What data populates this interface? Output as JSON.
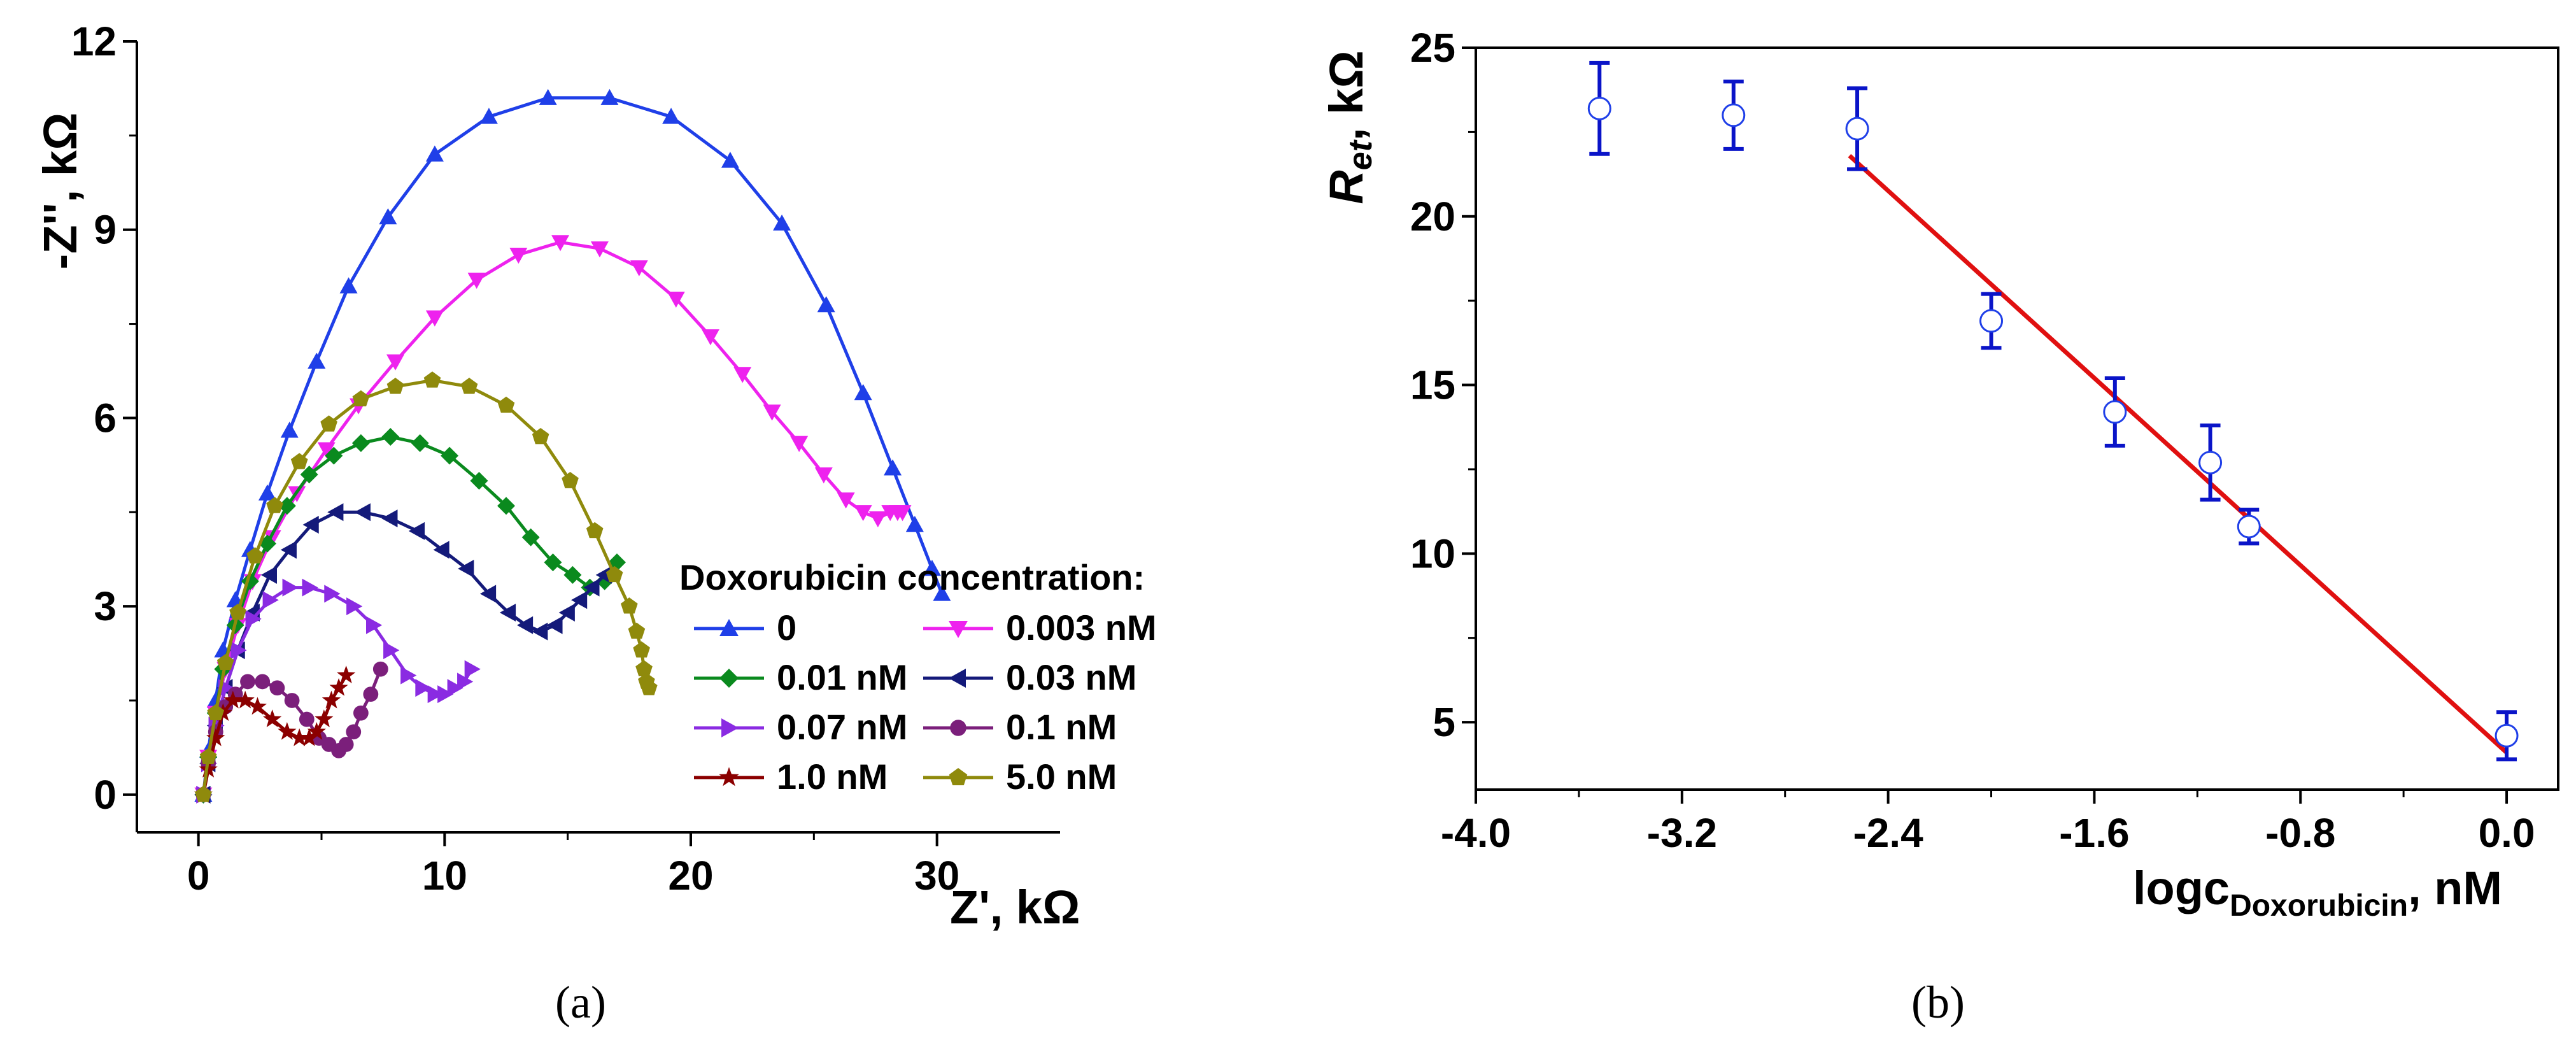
{
  "figure": {
    "panel_a_label": "(a)",
    "panel_b_label": "(b)"
  },
  "chart_data": [
    {
      "type": "line",
      "panel": "(a)",
      "title": "",
      "xlabel": "Z', kΩ",
      "ylabel": "-Z'', kΩ",
      "xlim": [
        -2.5,
        35
      ],
      "ylim": [
        -0.6,
        12
      ],
      "xticks": [
        0,
        10,
        20,
        30
      ],
      "yticks": [
        0,
        3,
        6,
        9,
        12
      ],
      "xtick_labels": [
        "0",
        "10",
        "20",
        "30"
      ],
      "ytick_labels": [
        "0",
        "3",
        "6",
        "9",
        "12"
      ],
      "legend_title": "Doxorubicin concentration:",
      "legend_position": "bottom-right",
      "series": [
        {
          "name": "0",
          "color": "#1f3fe8",
          "marker": "triangle-up",
          "x": [
            0.2,
            0.4,
            0.7,
            1.0,
            1.5,
            2.1,
            2.8,
            3.7,
            4.8,
            6.1,
            7.7,
            9.6,
            11.8,
            14.2,
            16.7,
            19.2,
            21.6,
            23.7,
            25.5,
            27.0,
            28.2,
            29.1,
            29.8,
            30.2
          ],
          "y": [
            0.0,
            0.7,
            1.5,
            2.3,
            3.1,
            3.9,
            4.8,
            5.8,
            6.9,
            8.1,
            9.2,
            10.2,
            10.8,
            11.1,
            11.1,
            10.8,
            10.1,
            9.1,
            7.8,
            6.4,
            5.2,
            4.3,
            3.6,
            3.2
          ]
        },
        {
          "name": "0.003 nM",
          "color": "#ee22ee",
          "marker": "triangle-down",
          "x": [
            0.2,
            0.4,
            0.7,
            1.1,
            1.6,
            2.2,
            3.0,
            4.0,
            5.2,
            6.5,
            8.0,
            9.6,
            11.3,
            13.0,
            14.7,
            16.3,
            17.9,
            19.4,
            20.8,
            22.1,
            23.3,
            24.4,
            25.4,
            26.3,
            27.0,
            27.6,
            28.1,
            28.4,
            28.6
          ],
          "y": [
            0.0,
            0.6,
            1.3,
            2.0,
            2.7,
            3.4,
            4.1,
            4.8,
            5.5,
            6.2,
            6.9,
            7.6,
            8.2,
            8.6,
            8.8,
            8.7,
            8.4,
            7.9,
            7.3,
            6.7,
            6.1,
            5.6,
            5.1,
            4.7,
            4.5,
            4.4,
            4.5,
            4.5,
            4.5
          ]
        },
        {
          "name": "0.01 nM",
          "color": "#0a8a1e",
          "marker": "diamond",
          "x": [
            0.2,
            0.4,
            0.7,
            1.0,
            1.5,
            2.1,
            2.8,
            3.6,
            4.5,
            5.5,
            6.6,
            7.8,
            9.0,
            10.2,
            11.4,
            12.5,
            13.5,
            14.4,
            15.2,
            15.9,
            16.5,
            17.0
          ],
          "y": [
            0.0,
            0.6,
            1.3,
            2.0,
            2.7,
            3.4,
            4.0,
            4.6,
            5.1,
            5.4,
            5.6,
            5.7,
            5.6,
            5.4,
            5.0,
            4.6,
            4.1,
            3.7,
            3.5,
            3.3,
            3.4,
            3.7
          ]
        },
        {
          "name": "0.03 nM",
          "color": "#141a7a",
          "marker": "triangle-left",
          "x": [
            0.2,
            0.4,
            0.7,
            1.1,
            1.6,
            2.2,
            2.9,
            3.7,
            4.6,
            5.6,
            6.7,
            7.8,
            8.9,
            9.9,
            10.9,
            11.8,
            12.6,
            13.3,
            13.9,
            14.5,
            15.0,
            15.5,
            16.0,
            16.5
          ],
          "y": [
            0.0,
            0.5,
            1.1,
            1.7,
            2.3,
            2.9,
            3.5,
            3.9,
            4.3,
            4.5,
            4.5,
            4.4,
            4.2,
            3.9,
            3.6,
            3.2,
            2.9,
            2.7,
            2.6,
            2.7,
            2.9,
            3.1,
            3.3,
            3.5
          ]
        },
        {
          "name": "0.07 nM",
          "color": "#8a2be2",
          "marker": "triangle-right",
          "x": [
            0.2,
            0.4,
            0.7,
            1.1,
            1.6,
            2.2,
            2.9,
            3.7,
            4.5,
            5.4,
            6.3,
            7.1,
            7.8,
            8.5,
            9.1,
            9.6,
            10.0,
            10.4,
            10.8,
            11.1
          ],
          "y": [
            0.0,
            0.5,
            1.1,
            1.7,
            2.3,
            2.8,
            3.1,
            3.3,
            3.3,
            3.2,
            3.0,
            2.7,
            2.3,
            1.9,
            1.7,
            1.6,
            1.6,
            1.7,
            1.8,
            2.0
          ]
        },
        {
          "name": "0.1 nM",
          "color": "#7b1f7b",
          "marker": "circle",
          "x": [
            0.2,
            0.4,
            0.7,
            1.1,
            1.5,
            2.0,
            2.6,
            3.2,
            3.8,
            4.4,
            4.9,
            5.3,
            5.7,
            6.0,
            6.3,
            6.6,
            7.0,
            7.4
          ],
          "y": [
            0.0,
            0.5,
            1.0,
            1.4,
            1.6,
            1.8,
            1.8,
            1.7,
            1.5,
            1.2,
            0.9,
            0.8,
            0.7,
            0.8,
            1.0,
            1.3,
            1.6,
            2.0
          ]
        },
        {
          "name": "1.0 nM",
          "color": "#8b0000",
          "marker": "star",
          "x": [
            0.2,
            0.4,
            0.7,
            1.0,
            1.4,
            1.9,
            2.4,
            3.0,
            3.6,
            4.1,
            4.5,
            4.8,
            5.1,
            5.4,
            5.7,
            6.0
          ],
          "y": [
            0.0,
            0.4,
            0.9,
            1.3,
            1.5,
            1.5,
            1.4,
            1.2,
            1.0,
            0.9,
            0.9,
            1.0,
            1.2,
            1.5,
            1.7,
            1.9
          ]
        },
        {
          "name": "5.0 nM",
          "color": "#8f8a0c",
          "marker": "pentagon",
          "x": [
            0.2,
            0.4,
            0.7,
            1.1,
            1.6,
            2.3,
            3.1,
            4.1,
            5.3,
            6.6,
            8.0,
            9.5,
            11.0,
            12.5,
            13.9,
            15.1,
            16.1,
            16.9,
            17.5,
            17.8,
            18.0,
            18.1,
            18.2,
            18.3
          ],
          "y": [
            0.0,
            0.6,
            1.3,
            2.1,
            2.9,
            3.8,
            4.6,
            5.3,
            5.9,
            6.3,
            6.5,
            6.6,
            6.5,
            6.2,
            5.7,
            5.0,
            4.2,
            3.5,
            3.0,
            2.6,
            2.3,
            2.0,
            1.8,
            1.7
          ]
        }
      ]
    },
    {
      "type": "scatter",
      "panel": "(b)",
      "title": "",
      "xlabel": "logc",
      "xlabel_subscript": "Doxorubicin",
      "xlabel_suffix": ", nM",
      "ylabel": "R",
      "ylabel_subscript": "et",
      "ylabel_suffix": ", kΩ",
      "xlim": [
        -4.0,
        0.2
      ],
      "ylim": [
        3,
        25
      ],
      "xticks": [
        -4.0,
        -3.2,
        -2.4,
        -1.6,
        -0.8,
        0.0
      ],
      "xtick_labels": [
        "-4.0",
        "-3.2",
        "-2.4",
        "-1.6",
        "-0.8",
        "0.0"
      ],
      "yticks": [
        5,
        10,
        15,
        20,
        25
      ],
      "ytick_labels": [
        "5",
        "10",
        "15",
        "20",
        "25"
      ],
      "marker_color": "#1f3fe8",
      "errorbar_color": "#0a14c8",
      "fit_color": "#e01010",
      "points": [
        {
          "x": -3.52,
          "y": 23.2,
          "err": 1.35
        },
        {
          "x": -3.0,
          "y": 23.0,
          "err": 1.0
        },
        {
          "x": -2.52,
          "y": 22.6,
          "err": 1.2
        },
        {
          "x": -2.0,
          "y": 16.9,
          "err": 0.8
        },
        {
          "x": -1.52,
          "y": 14.2,
          "err": 1.0
        },
        {
          "x": -1.15,
          "y": 12.7,
          "err": 1.1
        },
        {
          "x": -1.0,
          "y": 10.8,
          "err": 0.5
        },
        {
          "x": 0.0,
          "y": 4.6,
          "err": 0.7
        }
      ],
      "fit_line": {
        "x": [
          -2.55,
          0.0
        ],
        "y": [
          21.8,
          4.1
        ]
      }
    }
  ]
}
